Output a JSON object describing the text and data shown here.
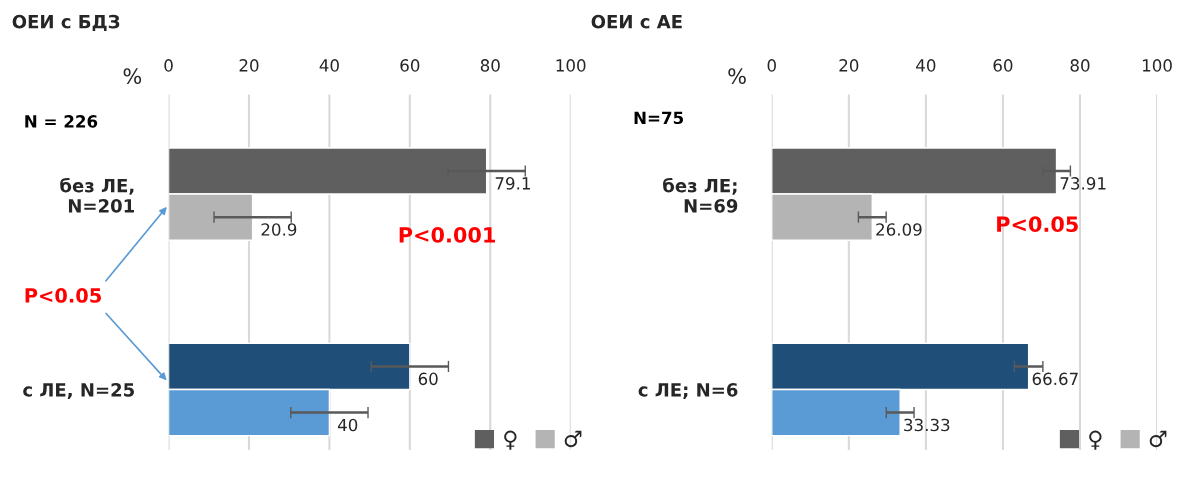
{
  "chart_data": [
    {
      "type": "bar",
      "orientation": "horizontal",
      "title": "ОЕИ с БДЗ",
      "xlabel": "%",
      "categories": [
        "без ЛЕ,\nN=201",
        "с ЛЕ, N=25"
      ],
      "series": [
        {
          "name": "♀",
          "color": "#5f5f5f",
          "colors": [
            "#5f5f5f",
            "#1f4e79"
          ],
          "values": [
            79.1,
            60
          ],
          "errors": [
            9.6,
            9.6
          ]
        },
        {
          "name": "♂",
          "color": "#b4b4b4",
          "colors": [
            "#b4b4b4",
            "#5b9bd5"
          ],
          "values": [
            20.9,
            40
          ],
          "errors": [
            9.6,
            9.6
          ]
        }
      ],
      "xlim": [
        0,
        100
      ],
      "xticks": [
        0,
        20,
        40,
        60,
        80,
        100
      ],
      "grid": "x",
      "data_labels": true,
      "legend": "bottom right",
      "annotations": [
        "N = 226",
        "P<0.001",
        "P<0.05"
      ]
    },
    {
      "type": "bar",
      "orientation": "horizontal",
      "title": "ОЕИ с АЕ",
      "xlabel": "%",
      "categories": [
        "без ЛЕ;\nN=69",
        "с ЛЕ; N=6"
      ],
      "series": [
        {
          "name": "♀",
          "color": "#5f5f5f",
          "colors": [
            "#5f5f5f",
            "#1f4e79"
          ],
          "values": [
            73.91,
            66.67
          ],
          "errors": [
            3.6,
            3.7
          ]
        },
        {
          "name": "♂",
          "color": "#b4b4b4",
          "colors": [
            "#b4b4b4",
            "#5b9bd5"
          ],
          "values": [
            26.09,
            33.33
          ],
          "errors": [
            3.6,
            3.6
          ]
        }
      ],
      "xlim": [
        0,
        100
      ],
      "xticks": [
        0,
        20,
        40,
        60,
        80,
        100
      ],
      "grid": "x",
      "data_labels": true,
      "legend": "bottom right",
      "annotations": [
        "N=75",
        "P<0.05"
      ]
    }
  ]
}
